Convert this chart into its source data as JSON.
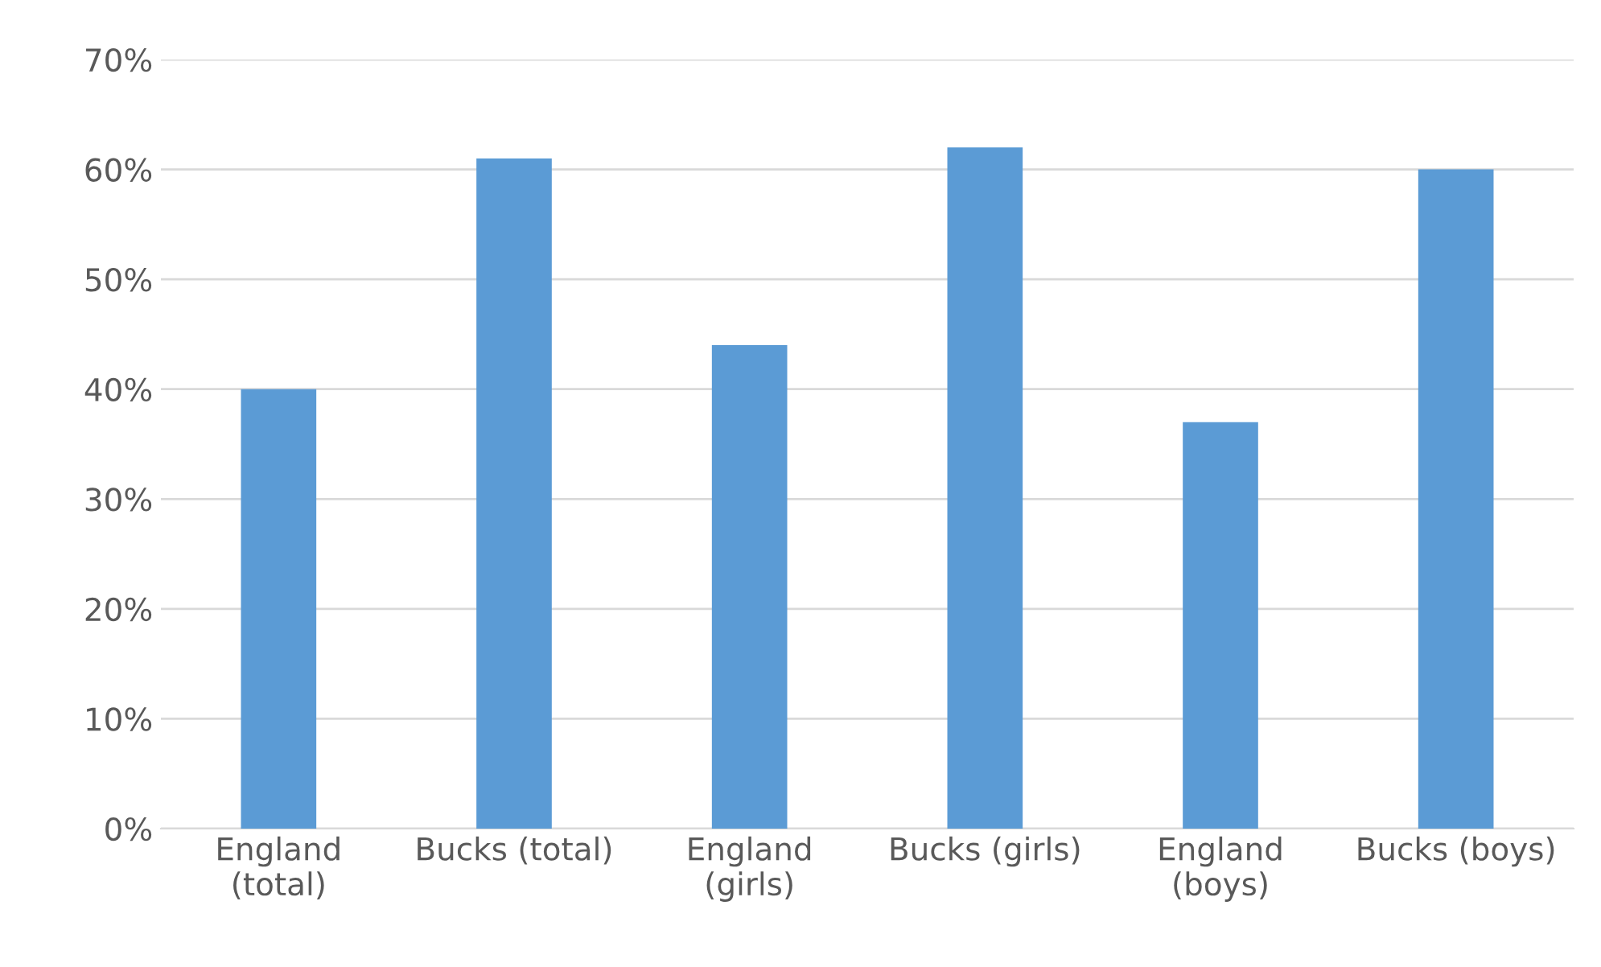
{
  "chart_data": {
    "type": "bar",
    "categories": [
      "England\n(total)",
      "Bucks (total)",
      "England\n(girls)",
      "Bucks (girls)",
      "England\n(boys)",
      "Bucks (boys)"
    ],
    "values": [
      40,
      61,
      44,
      62,
      37,
      60
    ],
    "color": "#5b9bd5",
    "ylim": [
      0,
      70
    ],
    "yticks": [
      {
        "value": 0,
        "label": "0%"
      },
      {
        "value": 10,
        "label": "10%"
      },
      {
        "value": 20,
        "label": "20%"
      },
      {
        "value": 30,
        "label": "30%"
      },
      {
        "value": 40,
        "label": "40%"
      },
      {
        "value": 50,
        "label": "50%"
      },
      {
        "value": 60,
        "label": "60%"
      },
      {
        "value": 70,
        "label": "70%"
      }
    ],
    "grid": "y"
  }
}
